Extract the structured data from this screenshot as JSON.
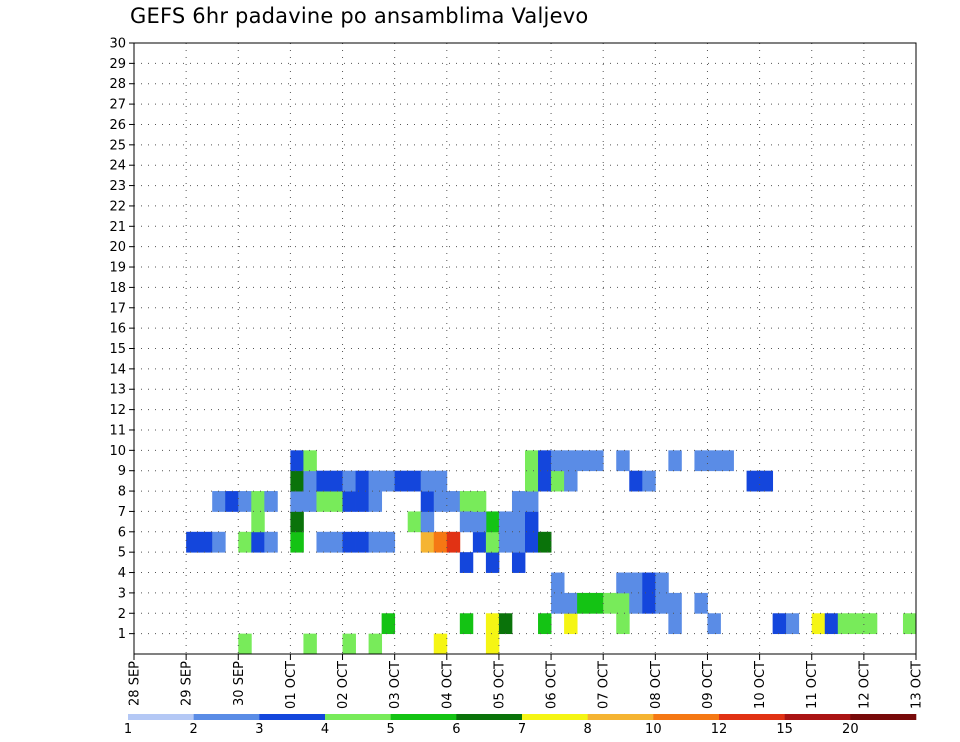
{
  "chart_data": {
    "type": "heatmap",
    "title": "GEFS 6hr padavine po ansamblima Valjevo",
    "xlabel": "",
    "ylabel": "",
    "x_ticks": [
      "28 SEP",
      "29 SEP",
      "30 SEP",
      "01 OCT",
      "02 OCT",
      "03 OCT",
      "04 OCT",
      "05 OCT",
      "06 OCT",
      "07 OCT",
      "08 OCT",
      "09 OCT",
      "10 OCT",
      "11 OCT",
      "12 OCT",
      "13 OCT"
    ],
    "y_ticks": [
      1,
      2,
      3,
      4,
      5,
      6,
      7,
      8,
      9,
      10,
      11,
      12,
      13,
      14,
      15,
      16,
      17,
      18,
      19,
      20,
      21,
      22,
      23,
      24,
      25,
      26,
      27,
      28,
      29,
      30
    ],
    "xlim": [
      0,
      60
    ],
    "ylim": [
      0,
      30
    ],
    "grid": true,
    "colorbar": {
      "labels": [
        "1",
        "2",
        "3",
        "4",
        "5",
        "6",
        "7",
        "8",
        "10",
        "12",
        "15",
        "20"
      ],
      "colors": [
        "#b4c8f5",
        "#5a8ce6",
        "#1446dc",
        "#78eb5a",
        "#14c314",
        "#0a730a",
        "#f5f514",
        "#f5b432",
        "#f57814",
        "#e13214",
        "#aa1414",
        "#780a0a"
      ]
    },
    "cells": [
      [
        8,
        0,
        3
      ],
      [
        13,
        0,
        3
      ],
      [
        16,
        0,
        3
      ],
      [
        18,
        0,
        3
      ],
      [
        23,
        0,
        6
      ],
      [
        27,
        0,
        6
      ],
      [
        19,
        1,
        4
      ],
      [
        25,
        1,
        4
      ],
      [
        27,
        1,
        6
      ],
      [
        28,
        1,
        5
      ],
      [
        31,
        1,
        4
      ],
      [
        41,
        1,
        1
      ],
      [
        52,
        1,
        6
      ],
      [
        55,
        1,
        3
      ],
      [
        32,
        2,
        1
      ],
      [
        32,
        3,
        1
      ],
      [
        33,
        1,
        6
      ],
      [
        33,
        2,
        1
      ],
      [
        34,
        2,
        4
      ],
      [
        35,
        2,
        4
      ],
      [
        36,
        2,
        3
      ],
      [
        37,
        1,
        3
      ],
      [
        37,
        2,
        3
      ],
      [
        38,
        2,
        1
      ],
      [
        38,
        3,
        1
      ],
      [
        37,
        3,
        1
      ],
      [
        39,
        2,
        2
      ],
      [
        39,
        3,
        2
      ],
      [
        40,
        2,
        1
      ],
      [
        40,
        3,
        1
      ],
      [
        41,
        2,
        1
      ],
      [
        43,
        2,
        1
      ],
      [
        44,
        1,
        1
      ],
      [
        50,
        1,
        1
      ],
      [
        49,
        1,
        2
      ],
      [
        53,
        1,
        2
      ],
      [
        54,
        1,
        3
      ],
      [
        56,
        1,
        3
      ],
      [
        59,
        1,
        3
      ],
      [
        25,
        4,
        2
      ],
      [
        27,
        4,
        2
      ],
      [
        29,
        4,
        2
      ],
      [
        4,
        5,
        2
      ],
      [
        5,
        5,
        2
      ],
      [
        6,
        5,
        1
      ],
      [
        8,
        5,
        3
      ],
      [
        9,
        5,
        2
      ],
      [
        10,
        5,
        1
      ],
      [
        12,
        5,
        4
      ],
      [
        12,
        6,
        5
      ],
      [
        14,
        5,
        1
      ],
      [
        15,
        5,
        1
      ],
      [
        16,
        5,
        2
      ],
      [
        17,
        5,
        2
      ],
      [
        18,
        5,
        1
      ],
      [
        19,
        5,
        1
      ],
      [
        22,
        5,
        7
      ],
      [
        23,
        5,
        8
      ],
      [
        24,
        5,
        9
      ],
      [
        26,
        5,
        2
      ],
      [
        27,
        5,
        3
      ],
      [
        27,
        6,
        4
      ],
      [
        28,
        5,
        1
      ],
      [
        28,
        6,
        1
      ],
      [
        29,
        5,
        1
      ],
      [
        30,
        5,
        2
      ],
      [
        31,
        5,
        5
      ],
      [
        6,
        7,
        1
      ],
      [
        7,
        7,
        2
      ],
      [
        8,
        7,
        1
      ],
      [
        9,
        7,
        3
      ],
      [
        9,
        6,
        3
      ],
      [
        10,
        7,
        1
      ],
      [
        12,
        7,
        1
      ],
      [
        13,
        7,
        1
      ],
      [
        14,
        7,
        3
      ],
      [
        15,
        7,
        3
      ],
      [
        16,
        7,
        2
      ],
      [
        17,
        7,
        2
      ],
      [
        18,
        7,
        1
      ],
      [
        21,
        6,
        3
      ],
      [
        22,
        6,
        1
      ],
      [
        22,
        7,
        2
      ],
      [
        23,
        7,
        1
      ],
      [
        24,
        7,
        1
      ],
      [
        25,
        7,
        3
      ],
      [
        25,
        6,
        1
      ],
      [
        26,
        6,
        1
      ],
      [
        26,
        7,
        3
      ],
      [
        29,
        6,
        1
      ],
      [
        29,
        7,
        1
      ],
      [
        30,
        6,
        2
      ],
      [
        30,
        7,
        1
      ],
      [
        12,
        8,
        5
      ],
      [
        12,
        9,
        2
      ],
      [
        13,
        8,
        1
      ],
      [
        13,
        9,
        3
      ],
      [
        14,
        8,
        2
      ],
      [
        15,
        8,
        2
      ],
      [
        16,
        8,
        1
      ],
      [
        17,
        8,
        2
      ],
      [
        18,
        8,
        1
      ],
      [
        19,
        8,
        1
      ],
      [
        20,
        8,
        2
      ],
      [
        21,
        8,
        2
      ],
      [
        22,
        8,
        1
      ],
      [
        23,
        8,
        1
      ],
      [
        30,
        8,
        3
      ],
      [
        30,
        9,
        3
      ],
      [
        31,
        8,
        2
      ],
      [
        31,
        9,
        2
      ],
      [
        32,
        8,
        3
      ],
      [
        32,
        9,
        1
      ],
      [
        33,
        9,
        1
      ],
      [
        34,
        9,
        1
      ],
      [
        35,
        9,
        1
      ],
      [
        33,
        8,
        1
      ],
      [
        37,
        9,
        1
      ],
      [
        38,
        8,
        2
      ],
      [
        39,
        8,
        1
      ],
      [
        41,
        9,
        1
      ],
      [
        43,
        9,
        1
      ],
      [
        44,
        9,
        1
      ],
      [
        45,
        9,
        1
      ],
      [
        47,
        8,
        2
      ],
      [
        48,
        8,
        2
      ]
    ]
  }
}
